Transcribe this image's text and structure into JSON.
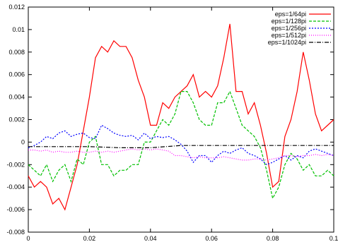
{
  "chart_data": {
    "type": "line",
    "title": "",
    "xlabel": "",
    "ylabel": "",
    "xlim": [
      0,
      0.1
    ],
    "ylim": [
      -0.008,
      0.012
    ],
    "x_ticks": [
      "0",
      "0.02",
      "0.04",
      "0.06",
      "0.08",
      "0.1"
    ],
    "x_tick_values": [
      0,
      0.02,
      0.04,
      0.06,
      0.08,
      0.1
    ],
    "y_ticks": [
      "-0.008",
      "-0.006",
      "-0.004",
      "-0.002",
      "0",
      "0.002",
      "0.004",
      "0.006",
      "0.008",
      "0.01",
      "0.012"
    ],
    "y_tick_values": [
      -0.008,
      -0.006,
      -0.004,
      -0.002,
      0,
      0.002,
      0.004,
      0.006,
      0.008,
      0.01,
      0.012
    ],
    "grid": false,
    "legend_position": "top-right",
    "series": [
      {
        "name": "eps=1/64pi",
        "color": "#ff0000",
        "dash": "solid",
        "x": [
          0,
          0.002,
          0.004,
          0.006,
          0.008,
          0.01,
          0.012,
          0.014,
          0.016,
          0.018,
          0.02,
          0.022,
          0.024,
          0.026,
          0.028,
          0.03,
          0.032,
          0.034,
          0.036,
          0.038,
          0.04,
          0.042,
          0.044,
          0.046,
          0.048,
          0.05,
          0.052,
          0.054,
          0.056,
          0.058,
          0.06,
          0.062,
          0.064,
          0.066,
          0.068,
          0.07,
          0.072,
          0.074,
          0.076,
          0.078,
          0.08,
          0.082,
          0.084,
          0.086,
          0.088,
          0.09,
          0.092,
          0.094,
          0.096,
          0.098,
          0.1
        ],
        "y": [
          -0.003,
          -0.004,
          -0.0035,
          -0.004,
          -0.0055,
          -0.005,
          -0.006,
          -0.004,
          -0.002,
          0.001,
          0.004,
          0.0075,
          0.0085,
          0.008,
          0.009,
          0.0085,
          0.0085,
          0.0075,
          0.0055,
          0.004,
          0.0015,
          0.0015,
          0.0035,
          0.003,
          0.004,
          0.0045,
          0.005,
          0.006,
          0.004,
          0.0045,
          0.004,
          0.005,
          0.0075,
          0.0105,
          0.0045,
          0.0045,
          0.0025,
          0.0035,
          0.0015,
          -0.001,
          -0.004,
          -0.0035,
          0.0005,
          0.002,
          0.0045,
          0.008,
          0.0055,
          0.0025,
          0.001,
          0.0015,
          0.002
        ]
      },
      {
        "name": "eps=1/128pi",
        "color": "#00c000",
        "dash": "4,2",
        "x": [
          0,
          0.002,
          0.004,
          0.006,
          0.008,
          0.01,
          0.012,
          0.014,
          0.016,
          0.018,
          0.02,
          0.022,
          0.024,
          0.026,
          0.028,
          0.03,
          0.032,
          0.034,
          0.036,
          0.038,
          0.04,
          0.042,
          0.044,
          0.046,
          0.048,
          0.05,
          0.052,
          0.054,
          0.056,
          0.058,
          0.06,
          0.062,
          0.064,
          0.066,
          0.068,
          0.07,
          0.072,
          0.074,
          0.076,
          0.078,
          0.08,
          0.082,
          0.084,
          0.086,
          0.088,
          0.09,
          0.092,
          0.094,
          0.096,
          0.098,
          0.1
        ],
        "y": [
          -0.002,
          -0.0025,
          -0.003,
          -0.002,
          -0.0035,
          -0.0025,
          -0.002,
          -0.0035,
          -0.0015,
          -0.002,
          0,
          0.0005,
          -0.002,
          -0.002,
          -0.003,
          -0.0025,
          -0.0025,
          -0.002,
          -0.002,
          0,
          0,
          0.001,
          0.002,
          0.0015,
          0.0025,
          0.0045,
          0.0045,
          0.0035,
          0.002,
          0.0015,
          0.0015,
          0.0035,
          0.0035,
          0.0045,
          0.003,
          0.0015,
          0.001,
          0.0005,
          -0.0005,
          -0.0025,
          -0.005,
          -0.004,
          -0.002,
          -0.001,
          -0.0015,
          -0.0025,
          -0.002,
          -0.003,
          -0.003,
          -0.0025,
          -0.003
        ]
      },
      {
        "name": "eps=1/256pi",
        "color": "#0000ff",
        "dash": "2,2",
        "x": [
          0,
          0.002,
          0.004,
          0.006,
          0.008,
          0.01,
          0.012,
          0.014,
          0.016,
          0.018,
          0.02,
          0.022,
          0.024,
          0.026,
          0.028,
          0.03,
          0.032,
          0.034,
          0.036,
          0.038,
          0.04,
          0.042,
          0.044,
          0.046,
          0.048,
          0.05,
          0.052,
          0.054,
          0.056,
          0.058,
          0.06,
          0.062,
          0.064,
          0.066,
          0.068,
          0.07,
          0.072,
          0.074,
          0.076,
          0.078,
          0.08,
          0.082,
          0.084,
          0.086,
          0.088,
          0.09,
          0.092,
          0.094,
          0.096,
          0.098,
          0.1
        ],
        "y": [
          -0.0005,
          -0.0003,
          0,
          0.0005,
          0.0003,
          0.0008,
          0.001,
          0.0005,
          0.0007,
          0.0008,
          0.0004,
          0.0003,
          0.0015,
          0.0012,
          0.0008,
          0.0006,
          0.0005,
          0.0006,
          0.0002,
          0.0008,
          0.0003,
          0.0005,
          0.0004,
          0.0005,
          0.0002,
          -0.0002,
          -0.0008,
          -0.0018,
          -0.0012,
          -0.0012,
          -0.0018,
          -0.0012,
          -0.0008,
          -0.001,
          -0.0007,
          -0.0005,
          -0.001,
          -0.0012,
          -0.0015,
          -0.002,
          -0.0018,
          -0.0015,
          -0.0012,
          -0.0016,
          -0.0012,
          -0.0014,
          -0.0008,
          -0.0006,
          -0.0008,
          -0.001,
          -0.0012
        ]
      },
      {
        "name": "eps=1/512pi",
        "color": "#ff00ff",
        "dash": "1,2",
        "x": [
          0,
          0.002,
          0.004,
          0.006,
          0.008,
          0.01,
          0.012,
          0.014,
          0.016,
          0.018,
          0.02,
          0.022,
          0.024,
          0.026,
          0.028,
          0.03,
          0.032,
          0.034,
          0.036,
          0.038,
          0.04,
          0.042,
          0.044,
          0.046,
          0.048,
          0.05,
          0.052,
          0.054,
          0.056,
          0.058,
          0.06,
          0.062,
          0.064,
          0.066,
          0.068,
          0.07,
          0.072,
          0.074,
          0.076,
          0.078,
          0.08,
          0.082,
          0.084,
          0.086,
          0.088,
          0.09,
          0.092,
          0.094,
          0.096,
          0.098,
          0.1
        ],
        "y": [
          -0.0007,
          -0.0007,
          -0.0008,
          -0.0007,
          -0.0009,
          -0.0008,
          -0.0009,
          -0.0009,
          -0.0008,
          -0.0009,
          -0.0009,
          -0.0008,
          -0.0009,
          -0.0008,
          -0.0009,
          -0.0008,
          -0.0007,
          -0.0006,
          -0.0007,
          -0.0006,
          -0.0007,
          -0.0006,
          -0.0007,
          -0.0008,
          -0.0012,
          -0.0012,
          -0.0013,
          -0.0014,
          -0.0013,
          -0.0014,
          -0.0014,
          -0.0014,
          -0.0013,
          -0.0014,
          -0.0015,
          -0.0016,
          -0.0016,
          -0.0015,
          -0.0015,
          -0.0016,
          -0.0015,
          -0.0014,
          -0.0012,
          -0.0012,
          -0.0013,
          -0.0012,
          -0.0012,
          -0.0011,
          -0.0012,
          -0.0011,
          -0.0012
        ]
      },
      {
        "name": "eps=1/1024pi",
        "color": "#000000",
        "dash": "6,2,1,2",
        "x": [
          0,
          0.01,
          0.02,
          0.03,
          0.04,
          0.05,
          0.06,
          0.07,
          0.08,
          0.09,
          0.1
        ],
        "y": [
          -0.0004,
          -0.0004,
          -0.0004,
          -0.0005,
          -0.0005,
          -0.0003,
          -0.0003,
          -0.0003,
          -0.0003,
          -0.0003,
          -0.0003
        ]
      }
    ]
  }
}
